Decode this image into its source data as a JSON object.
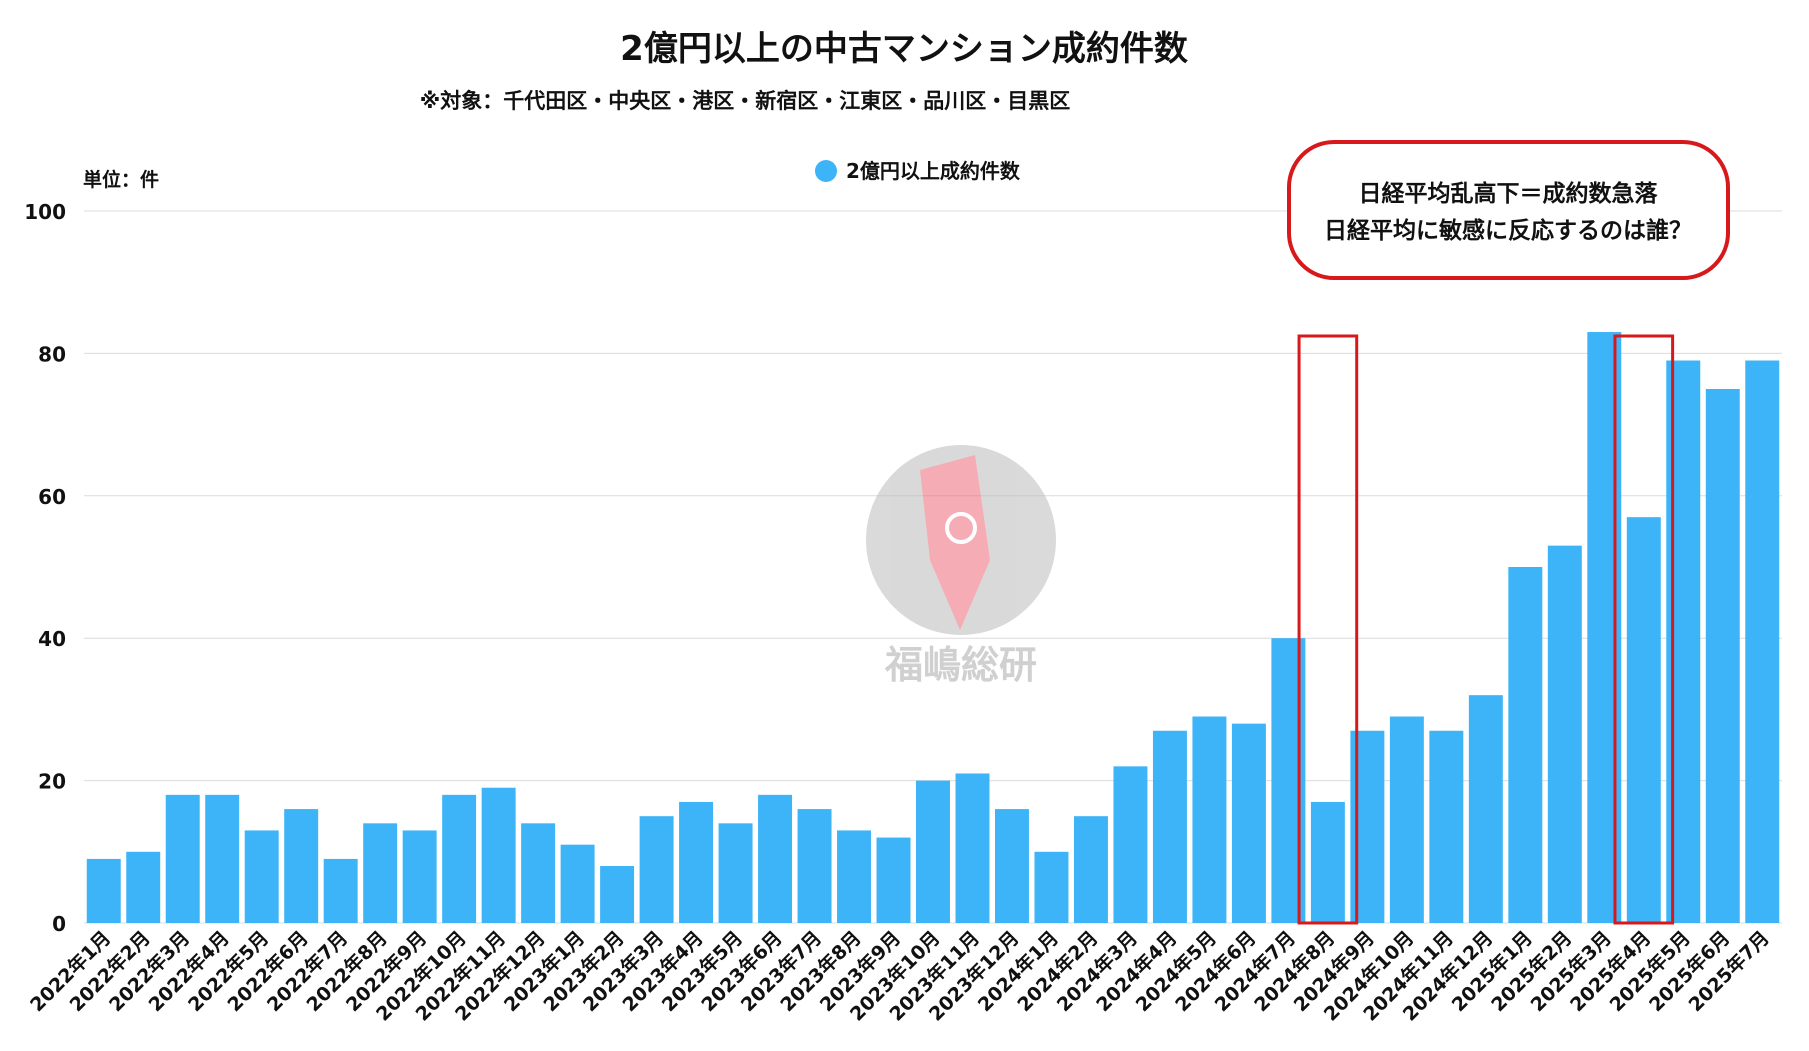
{
  "chart_data": {
    "type": "bar",
    "title": "2億円以上の中古マンション成約件数",
    "subtitle": "※対象：千代田区・中央区・港区・新宿区・江東区・品川区・目黒区",
    "unit_label": "単位：件",
    "legend": {
      "entries": [
        "2億円以上成約件数"
      ],
      "placement": "top-center"
    },
    "annotation": {
      "lines": [
        "日経平均乱高下＝成約数急落",
        "日経平均に敏感に反応するのは誰？"
      ],
      "border_color": "#d7191c"
    },
    "highlighted_categories": [
      "2024年8月",
      "2025年4月"
    ],
    "watermark": "福嶋総研",
    "ylim": [
      0,
      100
    ],
    "yticks": [
      0,
      20,
      40,
      60,
      80,
      100
    ],
    "grid": true,
    "bar_color": "#3cb4f7",
    "categories": [
      "2022年1月",
      "2022年2月",
      "2022年3月",
      "2022年4月",
      "2022年5月",
      "2022年6月",
      "2022年7月",
      "2022年8月",
      "2022年9月",
      "2022年10月",
      "2022年11月",
      "2022年12月",
      "2023年1月",
      "2023年2月",
      "2023年3月",
      "2023年4月",
      "2023年5月",
      "2023年6月",
      "2023年7月",
      "2023年8月",
      "2023年9月",
      "2023年10月",
      "2023年11月",
      "2023年12月",
      "2024年1月",
      "2024年2月",
      "2024年3月",
      "2024年4月",
      "2024年5月",
      "2024年6月",
      "2024年7月",
      "2024年8月",
      "2024年9月",
      "2024年10月",
      "2024年11月",
      "2024年12月",
      "2025年1月",
      "2025年2月",
      "2025年3月",
      "2025年4月",
      "2025年5月",
      "2025年6月",
      "2025年7月"
    ],
    "series": [
      {
        "name": "2億円以上成約件数",
        "values": [
          9,
          10,
          18,
          18,
          13,
          16,
          9,
          14,
          13,
          18,
          19,
          14,
          11,
          8,
          15,
          17,
          14,
          18,
          16,
          13,
          12,
          20,
          21,
          16,
          10,
          15,
          22,
          27,
          29,
          28,
          40,
          17,
          27,
          29,
          27,
          32,
          50,
          53,
          83,
          57,
          79,
          75,
          79
        ]
      }
    ]
  }
}
